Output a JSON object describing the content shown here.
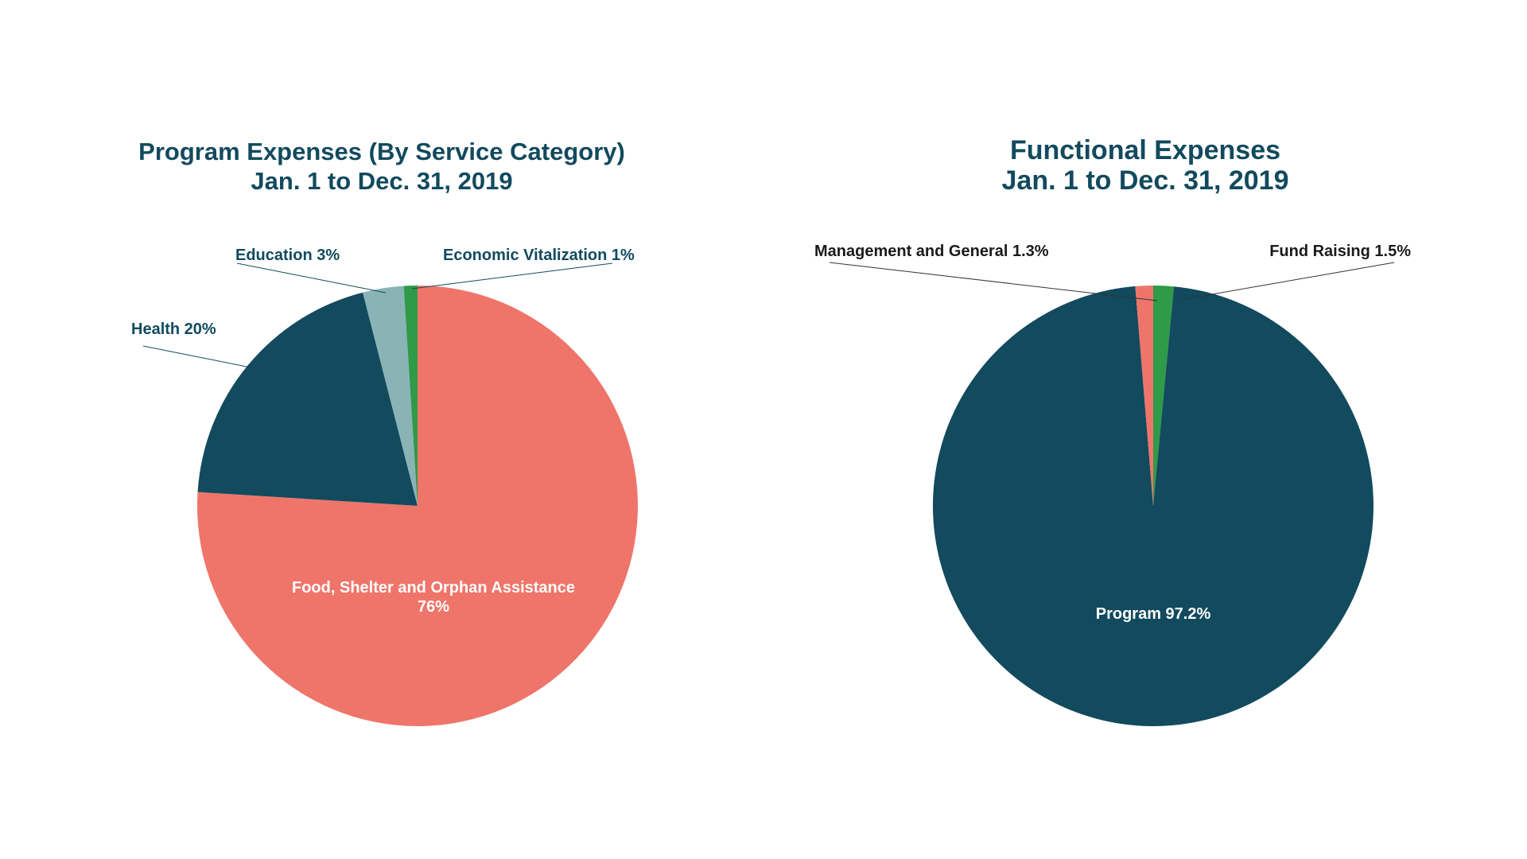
{
  "colors": {
    "background": "#ffffff",
    "title": "#124a5e",
    "dark_teal": "#124a5e",
    "salmon": "#ef756a",
    "light_teal": "#8ab3b6",
    "green": "#2f9a47"
  },
  "chart_data": [
    {
      "type": "pie",
      "title": [
        "Program Expenses (By Service Category)",
        "Jan. 1 to Dec. 31, 2019"
      ],
      "slices": [
        {
          "name": "Food, Shelter and Orphan Assistance",
          "value": 76,
          "label": [
            "Food, Shelter and Orphan Assistance",
            "76%"
          ],
          "color": "#ef756a",
          "label_placement": "inside"
        },
        {
          "name": "Health",
          "value": 20,
          "label": [
            "Health 20%"
          ],
          "color": "#124a5e",
          "label_placement": "outside"
        },
        {
          "name": "Education",
          "value": 3,
          "label": [
            "Education 3%"
          ],
          "color": "#8ab3b6",
          "label_placement": "outside"
        },
        {
          "name": "Economic Vitalization",
          "value": 1,
          "label": [
            "Economic Vitalization 1%"
          ],
          "color": "#2f9a47",
          "label_placement": "outside"
        }
      ],
      "start": "12 o'clock",
      "direction": "clockwise"
    },
    {
      "type": "pie",
      "title": [
        "Functional Expenses",
        "Jan. 1 to Dec. 31, 2019"
      ],
      "slices": [
        {
          "name": "Fund Raising",
          "value": 1.5,
          "label": [
            "Fund Raising 1.5%"
          ],
          "color": "#2f9a47",
          "label_placement": "outside"
        },
        {
          "name": "Program",
          "value": 97.2,
          "label": [
            "Program 97.2%"
          ],
          "color": "#124a5e",
          "label_placement": "inside"
        },
        {
          "name": "Management and General",
          "value": 1.3,
          "label": [
            "Management and General 1.3%"
          ],
          "color": "#ef756a",
          "label_placement": "outside"
        }
      ],
      "start": "12 o'clock",
      "direction": "clockwise"
    }
  ]
}
